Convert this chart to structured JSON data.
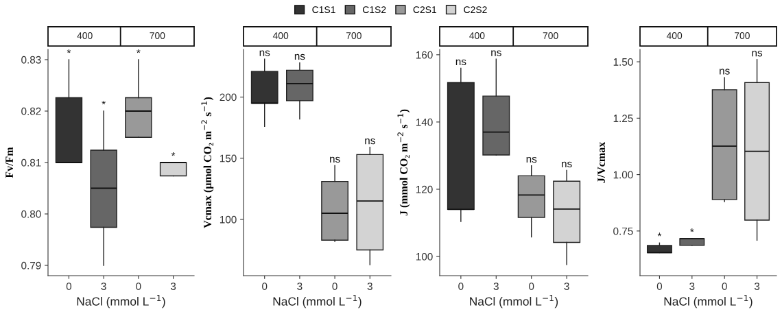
{
  "chart_data": [
    {
      "type": "box",
      "categories": [
        "0",
        "3",
        "0",
        "3"
      ],
      "ylabel": "Fv/Fm",
      "xlabel": "NaCl (mmol L$^{−1}$)",
      "ylim": [
        0.788,
        0.832
      ],
      "yticks": [
        0.79,
        {
          "value": 0.8,
          "label": "0.80"
        },
        0.81,
        0.82,
        0.83
      ],
      "legend": "top",
      "series": [
        {
          "name": "C1S1",
          "color": "#333333",
          "boxes": [
            {
              "low": 0.81,
              "q1": 0.81,
              "median": 0.81,
              "q3": 0.8226,
              "high": 0.83
            },
            null,
            null,
            null
          ]
        },
        {
          "name": "C1S2",
          "color": "#666666",
          "boxes": [
            null,
            {
              "low": 0.79,
              "q1": 0.7974,
              "median": 0.805,
              "q3": 0.8124,
              "high": 0.82
            },
            null,
            null
          ]
        },
        {
          "name": "C2S1",
          "color": "#999999",
          "boxes": [
            null,
            null,
            {
              "low": 0.8149,
              "q1": 0.8149,
              "median": 0.82,
              "q3": 0.8226,
              "high": 0.83
            },
            null
          ]
        },
        {
          "name": "C2S2",
          "color": "#d3d3d3",
          "boxes": [
            null,
            null,
            null,
            {
              "low": 0.8074,
              "q1": 0.8074,
              "median": 0.81,
              "q3": 0.81,
              "high": 0.81
            }
          ]
        }
      ],
      "annotations": [
        "400",
        "700",
        "*",
        "*",
        "*",
        "*"
      ]
    },
    {
      "type": "box",
      "categories": [
        "0",
        "3",
        "0",
        "3"
      ],
      "ylabel": "Vcmax (μmol CO₂ m$^{−2}$ s$^{−1}$)",
      "xlabel": "NaCl (mmol L$^{−1}$)",
      "ylim": [
        54,
        239
      ],
      "yticks": [
        100,
        150,
        200
      ],
      "series": [
        {
          "color": "#333333",
          "boxes": [
            {
              "low": 176,
              "q1": 195,
              "median": 195,
              "q3": 221,
              "high": 231
            },
            null,
            null,
            null
          ]
        },
        {
          "color": "#666666",
          "boxes": [
            null,
            {
              "low": 182,
              "q1": 197,
              "median": 211,
              "q3": 222,
              "high": 228
            },
            null,
            null
          ]
        },
        {
          "color": "#999999",
          "boxes": [
            null,
            null,
            {
              "low": 82,
              "q1": 83,
              "median": 105,
              "q3": 131,
              "high": 144
            },
            null
          ]
        },
        {
          "color": "#d3d3d3",
          "boxes": [
            null,
            null,
            null,
            {
              "low": 63,
              "q1": 75,
              "median": 115,
              "q3": 153,
              "high": 159
            }
          ]
        }
      ],
      "annotations": [
        "400",
        "700",
        "ns",
        "ns",
        "ns",
        "ns"
      ]
    },
    {
      "type": "box",
      "categories": [
        "0",
        "3",
        "0",
        "3"
      ],
      "ylabel": "J (mmol CO₂ m$^{−2}$ s$^{−1}$)",
      "xlabel": "NaCl (mmol L$^{−1}$)",
      "ylim": [
        94.3,
        161.6
      ],
      "yticks": [
        100,
        120,
        140,
        160
      ],
      "series": [
        {
          "color": "#333333",
          "boxes": [
            {
              "low": 110.4,
              "q1": 114,
              "median": 114,
              "q3": 151.7,
              "high": 156
            },
            null,
            null,
            null
          ]
        },
        {
          "color": "#666666",
          "boxes": [
            null,
            {
              "low": 130.2,
              "q1": 130.2,
              "median": 137,
              "q3": 147.7,
              "high": 158.7
            },
            null,
            null
          ]
        },
        {
          "color": "#999999",
          "boxes": [
            null,
            null,
            {
              "low": 105.8,
              "q1": 111.6,
              "median": 118.3,
              "q3": 124,
              "high": 127
            },
            null
          ]
        },
        {
          "color": "#d3d3d3",
          "boxes": [
            null,
            null,
            null,
            {
              "low": 97.6,
              "q1": 104.2,
              "median": 114.1,
              "q3": 122.4,
              "high": 125.6
            }
          ]
        }
      ],
      "annotations": [
        "400",
        "700",
        "ns",
        "ns",
        "ns",
        "ns"
      ]
    },
    {
      "type": "box",
      "categories": [
        "0",
        "3",
        "0",
        "3"
      ],
      "ylabel": "J/Vcmax",
      "xlabel": "NaCl (mmol L$^{−1}$)",
      "ylim": [
        0.552,
        1.555
      ],
      "yticks": [
        0.75,
        {
          "value": 1.0,
          "label": "1.00"
        },
        1.25,
        {
          "value": 1.5,
          "label": "1.50"
        }
      ],
      "series": [
        {
          "color": "#333333",
          "boxes": [
            {
              "low": 0.654,
              "q1": 0.654,
              "median": 0.654,
              "q3": 0.686,
              "high": 0.697
            },
            null,
            null,
            null
          ]
        },
        {
          "color": "#666666",
          "boxes": [
            null,
            {
              "low": 0.686,
              "q1": 0.686,
              "median": 0.716,
              "q3": 0.716,
              "high": 0.716
            },
            null,
            null
          ]
        },
        {
          "color": "#999999",
          "boxes": [
            null,
            null,
            {
              "low": 0.88,
              "q1": 0.889,
              "median": 1.126,
              "q3": 1.376,
              "high": 1.43
            },
            null
          ]
        },
        {
          "color": "#d3d3d3",
          "boxes": [
            null,
            null,
            null,
            {
              "low": 0.709,
              "q1": 0.798,
              "median": 1.103,
              "q3": 1.408,
              "high": 1.51
            }
          ]
        }
      ],
      "annotations": [
        "400",
        "700",
        "*",
        "*",
        "ns",
        "ns"
      ]
    }
  ]
}
